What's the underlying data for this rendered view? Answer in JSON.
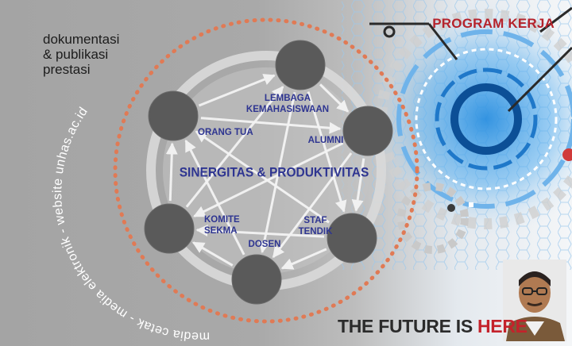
{
  "header": {
    "title": "PROGRAM KERJA"
  },
  "intro": {
    "line1": "dokumentasi",
    "line2": "& publikasi",
    "line3": "prestasi"
  },
  "ring_text": "media cetak - media elektronik - website unhas.ac.id",
  "diagram": {
    "center_label": "SINERGITAS & PRODUKTIVITAS",
    "nodes": [
      {
        "id": "lembaga",
        "lines": [
          "LEMBAGA",
          "KEMAHASISWAAN"
        ]
      },
      {
        "id": "alumni",
        "lines": [
          "ALUMNI"
        ]
      },
      {
        "id": "staf",
        "lines": [
          "STAF",
          "TENDIK"
        ]
      },
      {
        "id": "dosen",
        "lines": [
          "DOSEN"
        ]
      },
      {
        "id": "komite",
        "lines": [
          "KOMITE",
          "SEKMA"
        ]
      },
      {
        "id": "orangtua",
        "lines": [
          "ORANG TUA"
        ]
      }
    ]
  },
  "footer": {
    "slogan_main": "THE FUTURE IS ",
    "slogan_accent": "HERE"
  },
  "colors": {
    "accent_red": "#c4222b",
    "label_blue": "#2e3591",
    "dot_orange": "#e07a55",
    "node_gray": "#5a5a5a"
  }
}
